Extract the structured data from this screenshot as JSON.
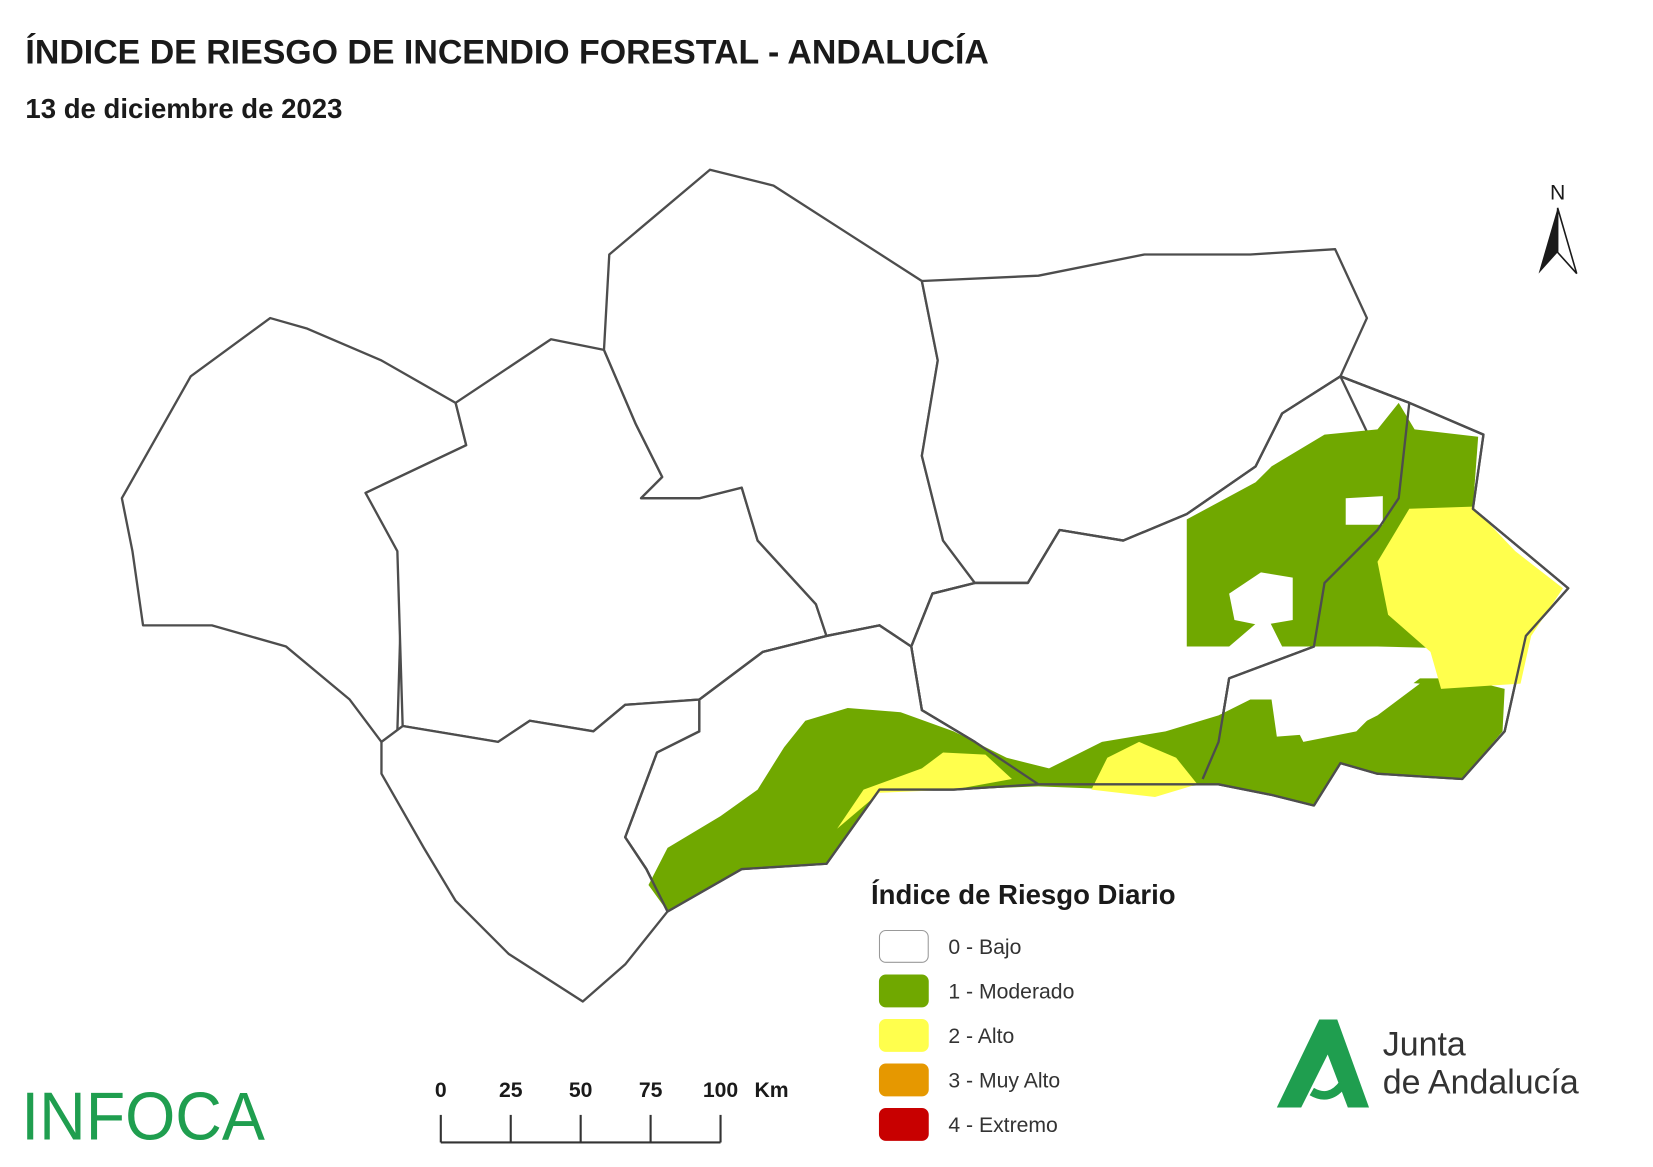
{
  "header": {
    "title": "ÍNDICE DE RIESGO DE INCENDIO FORESTAL - ANDALUCÍA",
    "subtitle": "13 de diciembre de 2023"
  },
  "north": "N",
  "legend": {
    "title": "Índice de Riesgo Diario",
    "entries": [
      {
        "label": "0 - Bajo",
        "color": "#ffffff"
      },
      {
        "label": "1 - Moderado",
        "color": "#70a800"
      },
      {
        "label": "2 - Alto",
        "color": "#ffff4d"
      },
      {
        "label": "3 - Muy Alto",
        "color": "#e69800"
      },
      {
        "label": "4 - Extremo",
        "color": "#c80000"
      }
    ]
  },
  "scale_bar": {
    "ticks": [
      0,
      25,
      50,
      75,
      100
    ],
    "unit": "Km"
  },
  "logos": {
    "infoca": "INFOCA",
    "junta_line1": "Junta",
    "junta_line2": "de Andalucía"
  }
}
